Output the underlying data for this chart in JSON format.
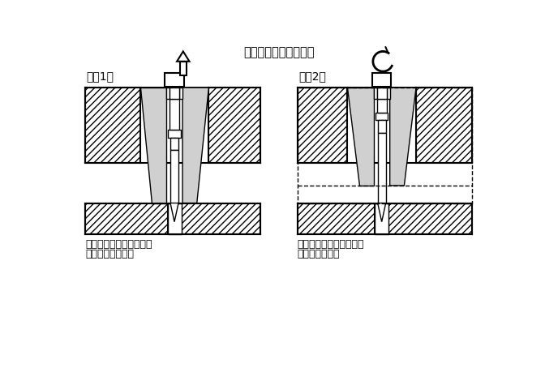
{
  "title": "（拉拔螺纹使用范例）",
  "label1": "（例1）",
  "label2": "（例2）",
  "text1_line1": "将螺格拧入拉拔螺纹中，",
  "text1_line2": "然后从板中拉出。",
  "text2_line1": "将螺格拧入拉拔螺纹中，",
  "text2_line2": "以使凹模浮起。",
  "light_gray": "#d0d0d0",
  "mid_gray": "#b0b0b0",
  "white": "#ffffff",
  "black": "#000000",
  "bg": "#ffffff"
}
